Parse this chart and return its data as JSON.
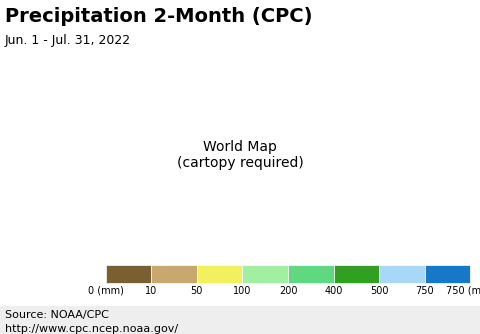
{
  "title": "Precipitation 2-Month (CPC)",
  "subtitle": "Jun. 1 - Jul. 31, 2022",
  "source_line1": "Source: NOAA/CPC",
  "source_line2": "http://www.cpc.ncep.noaa.gov/",
  "colorbar_values": [
    0,
    10,
    50,
    100,
    200,
    400,
    500,
    750
  ],
  "colorbar_colors": [
    "#7a6030",
    "#c8a86c",
    "#f0f060",
    "#a0f0a0",
    "#60d880",
    "#30a020",
    "#a8d8f8",
    "#1878c8"
  ],
  "colorbar_label": "(mm)",
  "ocean_color": "#b0f0f8",
  "background_color": "#ffffff",
  "title_fontsize": 14,
  "subtitle_fontsize": 9,
  "source_fontsize": 8,
  "tick_fontsize": 8,
  "map_region": [
    -180,
    180,
    -60,
    85
  ],
  "figsize": [
    4.8,
    3.34
  ],
  "dpi": 100
}
